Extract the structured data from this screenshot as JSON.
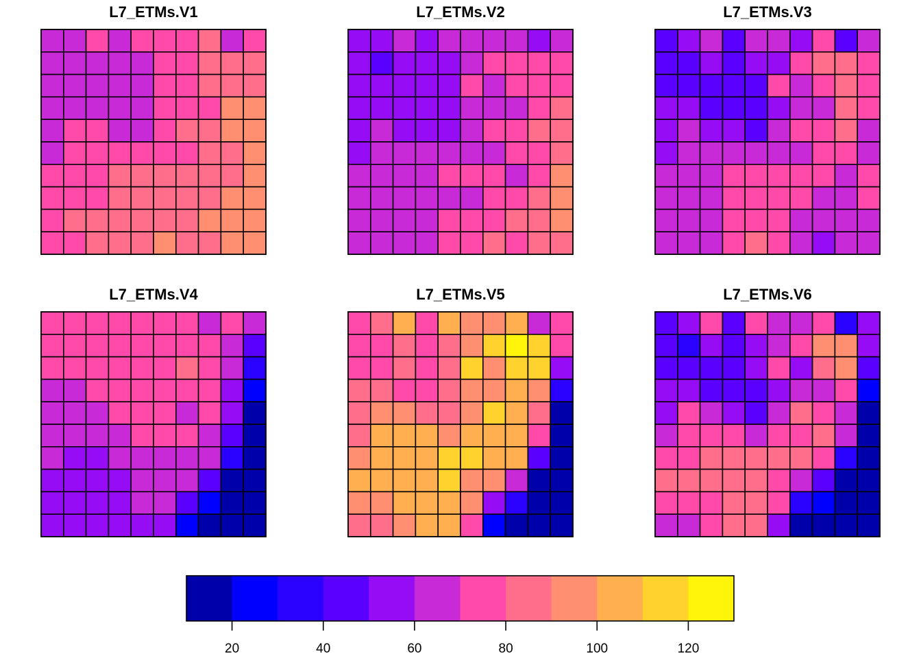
{
  "chart_data": {
    "type": "heatmap",
    "layout": "2x3 panels",
    "grid": true,
    "legend_placement": "bottom",
    "color_breaks": [
      10,
      20,
      30,
      40,
      50,
      60,
      70,
      80,
      90,
      100,
      110,
      120,
      130
    ],
    "colors": [
      "#0000AA",
      "#0000FF",
      "#2A00FF",
      "#5A00FF",
      "#960CF5",
      "#C82AD8",
      "#FF4AAA",
      "#FF6E8A",
      "#FF8F70",
      "#FFAF50",
      "#FFD22E",
      "#FFF50A"
    ],
    "legend_ticks": [
      20,
      40,
      60,
      80,
      100,
      120
    ],
    "legend_tick_labels": [
      "20",
      "40",
      "60",
      "80",
      "100",
      "120"
    ],
    "panels": [
      {
        "title": "L7_ETMs.V1",
        "values": [
          [
            65,
            65,
            75,
            65,
            75,
            75,
            75,
            85,
            65,
            75
          ],
          [
            65,
            65,
            65,
            65,
            65,
            75,
            75,
            85,
            85,
            85
          ],
          [
            65,
            65,
            65,
            65,
            65,
            75,
            75,
            85,
            85,
            85
          ],
          [
            65,
            65,
            65,
            65,
            65,
            75,
            75,
            75,
            95,
            95
          ],
          [
            65,
            75,
            75,
            65,
            65,
            75,
            85,
            85,
            95,
            95
          ],
          [
            65,
            75,
            75,
            75,
            75,
            75,
            75,
            85,
            85,
            95
          ],
          [
            75,
            75,
            75,
            85,
            85,
            85,
            85,
            85,
            85,
            95
          ],
          [
            75,
            75,
            75,
            85,
            85,
            85,
            85,
            85,
            95,
            95
          ],
          [
            75,
            85,
            85,
            85,
            85,
            85,
            85,
            95,
            95,
            95
          ],
          [
            75,
            75,
            85,
            85,
            85,
            95,
            85,
            85,
            95,
            95
          ]
        ]
      },
      {
        "title": "L7_ETMs.V2",
        "values": [
          [
            55,
            55,
            65,
            55,
            65,
            65,
            65,
            65,
            55,
            65
          ],
          [
            55,
            45,
            55,
            55,
            55,
            65,
            75,
            75,
            75,
            75
          ],
          [
            55,
            55,
            55,
            55,
            55,
            75,
            65,
            75,
            75,
            75
          ],
          [
            55,
            55,
            55,
            55,
            55,
            65,
            65,
            65,
            75,
            85
          ],
          [
            55,
            65,
            55,
            55,
            55,
            65,
            75,
            75,
            85,
            85
          ],
          [
            55,
            65,
            65,
            65,
            65,
            65,
            65,
            75,
            75,
            85
          ],
          [
            65,
            65,
            65,
            65,
            75,
            75,
            75,
            65,
            75,
            95
          ],
          [
            65,
            65,
            65,
            65,
            65,
            65,
            75,
            75,
            85,
            95
          ],
          [
            65,
            65,
            65,
            65,
            75,
            75,
            75,
            85,
            85,
            95
          ],
          [
            65,
            65,
            65,
            65,
            75,
            75,
            85,
            75,
            85,
            85
          ]
        ]
      },
      {
        "title": "L7_ETMs.V3",
        "values": [
          [
            45,
            55,
            65,
            45,
            65,
            65,
            55,
            75,
            45,
            65
          ],
          [
            45,
            45,
            55,
            45,
            55,
            55,
            75,
            85,
            85,
            75
          ],
          [
            45,
            45,
            45,
            45,
            45,
            75,
            65,
            75,
            85,
            75
          ],
          [
            55,
            55,
            45,
            45,
            45,
            55,
            65,
            65,
            85,
            75
          ],
          [
            55,
            65,
            55,
            55,
            45,
            65,
            75,
            75,
            85,
            65
          ],
          [
            55,
            65,
            65,
            65,
            65,
            65,
            65,
            75,
            75,
            65
          ],
          [
            65,
            65,
            65,
            75,
            75,
            75,
            75,
            75,
            65,
            75
          ],
          [
            65,
            65,
            65,
            75,
            75,
            75,
            75,
            65,
            65,
            75
          ],
          [
            65,
            65,
            65,
            75,
            75,
            75,
            65,
            65,
            65,
            65
          ],
          [
            65,
            65,
            65,
            75,
            85,
            75,
            65,
            55,
            65,
            65
          ]
        ]
      },
      {
        "title": "L7_ETMs.V4",
        "values": [
          [
            75,
            75,
            75,
            75,
            75,
            75,
            75,
            65,
            75,
            65
          ],
          [
            75,
            75,
            75,
            75,
            75,
            75,
            75,
            75,
            65,
            45
          ],
          [
            75,
            75,
            75,
            75,
            75,
            75,
            85,
            75,
            65,
            35
          ],
          [
            65,
            65,
            75,
            75,
            75,
            75,
            75,
            75,
            55,
            25
          ],
          [
            65,
            65,
            65,
            75,
            75,
            75,
            65,
            75,
            55,
            15
          ],
          [
            65,
            65,
            65,
            65,
            75,
            75,
            75,
            65,
            45,
            15
          ],
          [
            65,
            55,
            55,
            65,
            65,
            65,
            65,
            65,
            35,
            15
          ],
          [
            55,
            55,
            55,
            55,
            65,
            65,
            65,
            45,
            15,
            15
          ],
          [
            55,
            55,
            55,
            55,
            65,
            65,
            45,
            25,
            15,
            15
          ],
          [
            55,
            55,
            55,
            55,
            55,
            55,
            25,
            15,
            15,
            15
          ]
        ]
      },
      {
        "title": "L7_ETMs.V5",
        "values": [
          [
            75,
            85,
            105,
            75,
            105,
            95,
            95,
            105,
            65,
            75
          ],
          [
            75,
            75,
            85,
            75,
            85,
            95,
            115,
            125,
            115,
            75
          ],
          [
            75,
            75,
            85,
            75,
            85,
            115,
            95,
            115,
            115,
            55
          ],
          [
            85,
            85,
            75,
            75,
            85,
            95,
            95,
            105,
            95,
            35
          ],
          [
            85,
            95,
            95,
            85,
            85,
            95,
            115,
            105,
            85,
            15
          ],
          [
            85,
            105,
            105,
            105,
            95,
            105,
            105,
            105,
            75,
            15
          ],
          [
            95,
            105,
            105,
            105,
            115,
            115,
            105,
            105,
            45,
            15
          ],
          [
            105,
            105,
            105,
            105,
            115,
            95,
            95,
            65,
            15,
            15
          ],
          [
            95,
            95,
            105,
            105,
            105,
            95,
            55,
            35,
            15,
            15
          ],
          [
            85,
            85,
            95,
            105,
            105,
            75,
            25,
            15,
            15,
            15
          ]
        ]
      },
      {
        "title": "L7_ETMs.V6",
        "values": [
          [
            45,
            55,
            75,
            45,
            75,
            65,
            65,
            75,
            35,
            55
          ],
          [
            45,
            35,
            55,
            45,
            55,
            65,
            75,
            95,
            95,
            55
          ],
          [
            45,
            45,
            45,
            45,
            55,
            75,
            55,
            85,
            95,
            45
          ],
          [
            55,
            55,
            45,
            45,
            45,
            55,
            65,
            65,
            75,
            25
          ],
          [
            55,
            75,
            65,
            55,
            45,
            65,
            85,
            75,
            65,
            15
          ],
          [
            65,
            75,
            75,
            75,
            65,
            75,
            75,
            85,
            65,
            15
          ],
          [
            75,
            75,
            85,
            85,
            85,
            85,
            85,
            75,
            35,
            15
          ],
          [
            85,
            85,
            85,
            85,
            85,
            75,
            65,
            45,
            15,
            15
          ],
          [
            75,
            75,
            75,
            85,
            85,
            75,
            35,
            25,
            15,
            15
          ],
          [
            65,
            65,
            75,
            85,
            85,
            55,
            15,
            15,
            15,
            15
          ]
        ]
      }
    ]
  }
}
